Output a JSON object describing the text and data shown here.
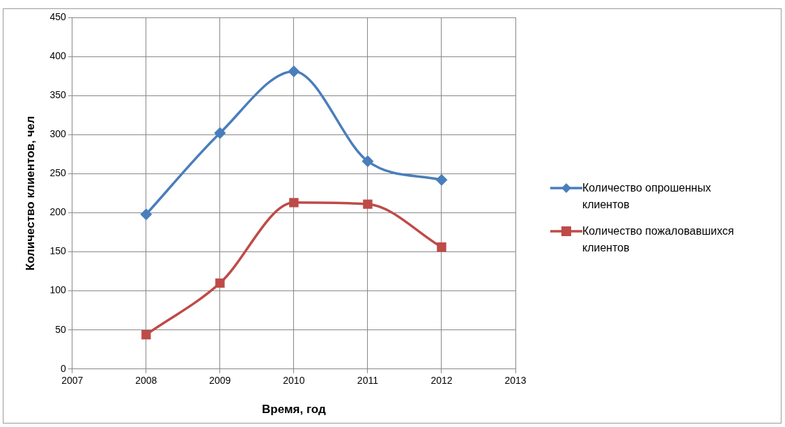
{
  "chart_data": {
    "type": "line",
    "xlabel": "Время, год",
    "ylabel": "Количество клиентов, чел",
    "x": [
      2008,
      2009,
      2010,
      2011,
      2012
    ],
    "series": [
      {
        "name": "Количество опрошенных клиентов",
        "color": "#4a7ebb",
        "marker": "diamond",
        "values": [
          198,
          302,
          381,
          266,
          242
        ]
      },
      {
        "name": "Количество пожаловавшихся клиентов",
        "color": "#be4b48",
        "marker": "square",
        "values": [
          44,
          110,
          213,
          211,
          156
        ]
      }
    ],
    "xlim": [
      2007,
      2013
    ],
    "xticks": [
      2007,
      2008,
      2009,
      2010,
      2011,
      2012,
      2013
    ],
    "ylim": [
      0,
      450
    ],
    "yticks": [
      0,
      50,
      100,
      150,
      200,
      250,
      300,
      350,
      400,
      450
    ],
    "grid": true,
    "legend": "right"
  }
}
